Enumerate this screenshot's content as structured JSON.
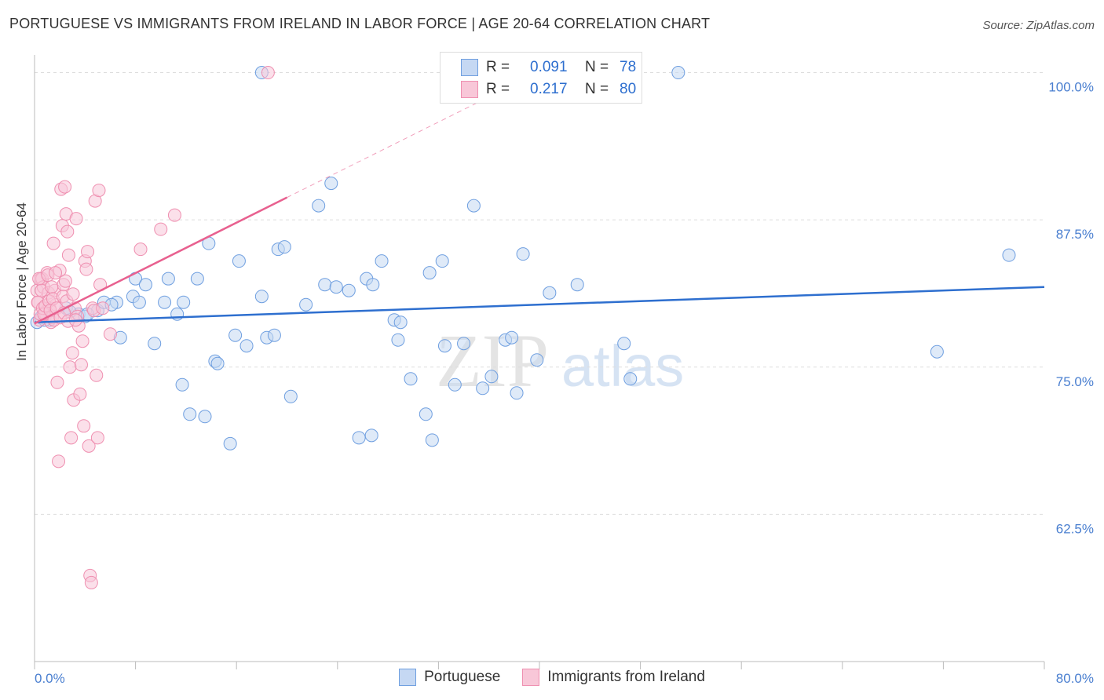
{
  "title": "PORTUGUESE VS IMMIGRANTS FROM IRELAND IN LABOR FORCE | AGE 20-64 CORRELATION CHART",
  "source": "Source: ZipAtlas.com",
  "watermark": {
    "zip": "ZIP",
    "atlas": "atlas"
  },
  "legend": {
    "r_label": "R =",
    "n_label": "N =",
    "series": [
      {
        "r": "0.091",
        "n": "78"
      },
      {
        "r": "0.217",
        "n": "80"
      }
    ]
  },
  "bottom_legend": [
    "Portuguese",
    "Immigrants from Ireland"
  ],
  "colors": {
    "blue": "#6f9fe0",
    "blue_fill": "#c5d8f3",
    "blue_line": "#2e6fcf",
    "pink": "#ef8fb0",
    "pink_fill": "#f8c7d8",
    "pink_line": "#e8608f",
    "axis_label": "#4a7fd0",
    "grid": "#dddddd"
  },
  "chart_data": {
    "type": "scatter",
    "title": "PORTUGUESE VS IMMIGRANTS FROM IRELAND IN LABOR FORCE | AGE 20-64 CORRELATION CHART",
    "xlabel": "",
    "ylabel": "In Labor Force | Age 20-64",
    "xlim": [
      0,
      80
    ],
    "ylim": [
      50,
      101.5
    ],
    "x_tick_labels": [
      "0.0%",
      "80.0%"
    ],
    "y_ticks": [
      62.5,
      75.0,
      87.5,
      100.0
    ],
    "y_tick_labels": [
      "62.5%",
      "75.0%",
      "87.5%",
      "100.0%"
    ],
    "series": [
      {
        "name": "Portuguese",
        "r": 0.091,
        "n": 78,
        "trend": {
          "x": [
            0,
            80
          ],
          "y": [
            78.8,
            81.8
          ]
        },
        "points": [
          [
            0.2,
            78.8
          ],
          [
            0.5,
            79.2
          ],
          [
            1.2,
            79.0
          ],
          [
            2.5,
            80.0
          ],
          [
            3.5,
            79.5
          ],
          [
            4.0,
            79.3
          ],
          [
            5.0,
            79.8
          ],
          [
            5.5,
            80.5
          ],
          [
            6.5,
            80.5
          ],
          [
            6.8,
            77.5
          ],
          [
            7.8,
            81.0
          ],
          [
            8.0,
            82.5
          ],
          [
            8.3,
            80.5
          ],
          [
            8.8,
            82.0
          ],
          [
            9.5,
            77.0
          ],
          [
            10.3,
            80.5
          ],
          [
            10.6,
            82.5
          ],
          [
            11.3,
            79.5
          ],
          [
            11.7,
            73.5
          ],
          [
            11.8,
            80.5
          ],
          [
            12.3,
            71.0
          ],
          [
            12.9,
            82.5
          ],
          [
            13.5,
            70.8
          ],
          [
            13.8,
            85.5
          ],
          [
            14.3,
            75.5
          ],
          [
            14.5,
            75.3
          ],
          [
            15.5,
            68.5
          ],
          [
            15.9,
            77.7
          ],
          [
            16.2,
            84.0
          ],
          [
            16.8,
            76.8
          ],
          [
            18.0,
            81.0
          ],
          [
            18.4,
            77.5
          ],
          [
            19.0,
            77.7
          ],
          [
            19.3,
            85.0
          ],
          [
            19.8,
            85.2
          ],
          [
            20.3,
            72.5
          ],
          [
            21.5,
            80.3
          ],
          [
            22.5,
            88.7
          ],
          [
            23.0,
            82.0
          ],
          [
            23.5,
            90.6
          ],
          [
            23.9,
            81.8
          ],
          [
            24.9,
            81.5
          ],
          [
            25.7,
            69.0
          ],
          [
            26.3,
            82.5
          ],
          [
            26.7,
            69.2
          ],
          [
            26.8,
            82.0
          ],
          [
            27.5,
            84.0
          ],
          [
            28.5,
            79.0
          ],
          [
            28.8,
            77.3
          ],
          [
            29.0,
            78.8
          ],
          [
            29.8,
            74.0
          ],
          [
            31.0,
            71.0
          ],
          [
            31.3,
            83.0
          ],
          [
            31.5,
            68.8
          ],
          [
            32.3,
            84.0
          ],
          [
            32.5,
            76.8
          ],
          [
            33.3,
            73.5
          ],
          [
            34.0,
            77.0
          ],
          [
            34.8,
            88.7
          ],
          [
            35.5,
            73.2
          ],
          [
            36.2,
            74.2
          ],
          [
            37.3,
            77.3
          ],
          [
            37.8,
            77.5
          ],
          [
            38.2,
            72.8
          ],
          [
            38.7,
            84.6
          ],
          [
            39.8,
            75.6
          ],
          [
            40.8,
            81.3
          ],
          [
            43.0,
            82.0
          ],
          [
            46.7,
            77.0
          ],
          [
            47.2,
            74.0
          ],
          [
            51.0,
            100.0
          ],
          [
            71.5,
            76.3
          ],
          [
            77.2,
            84.5
          ],
          [
            18.0,
            100.0
          ],
          [
            2.8,
            79.7
          ],
          [
            4.2,
            79.5
          ],
          [
            6.1,
            80.3
          ],
          [
            0.8,
            79.0
          ]
        ]
      },
      {
        "name": "Immigrants from Ireland",
        "r": 0.217,
        "n": 80,
        "trend": {
          "x": [
            0,
            20
          ],
          "y": [
            78.7,
            89.4
          ]
        },
        "trend_dashed": {
          "x": [
            20,
            35
          ],
          "y": [
            89.4,
            97.4
          ]
        },
        "points": [
          [
            0.2,
            81.5
          ],
          [
            0.3,
            80.5
          ],
          [
            0.4,
            79.0
          ],
          [
            0.5,
            82.5
          ],
          [
            0.6,
            82.5
          ],
          [
            0.7,
            81.8
          ],
          [
            0.8,
            80.0
          ],
          [
            0.9,
            79.5
          ],
          [
            1.0,
            83.0
          ],
          [
            1.1,
            81.3
          ],
          [
            1.2,
            80.0
          ],
          [
            1.3,
            78.8
          ],
          [
            1.4,
            79.2
          ],
          [
            1.5,
            85.5
          ],
          [
            1.6,
            81.5
          ],
          [
            1.7,
            80.3
          ],
          [
            1.8,
            73.7
          ],
          [
            1.9,
            67.0
          ],
          [
            2.0,
            83.2
          ],
          [
            2.1,
            90.1
          ],
          [
            2.2,
            87.0
          ],
          [
            2.3,
            82.0
          ],
          [
            2.4,
            90.3
          ],
          [
            2.5,
            88.0
          ],
          [
            2.6,
            86.5
          ],
          [
            2.7,
            84.5
          ],
          [
            2.8,
            75.0
          ],
          [
            2.9,
            69.0
          ],
          [
            3.0,
            76.2
          ],
          [
            3.1,
            72.2
          ],
          [
            3.2,
            80.0
          ],
          [
            3.3,
            87.6
          ],
          [
            3.4,
            79.3
          ],
          [
            3.5,
            78.5
          ],
          [
            3.6,
            72.7
          ],
          [
            3.7,
            75.2
          ],
          [
            3.8,
            77.2
          ],
          [
            3.9,
            70.0
          ],
          [
            4.0,
            84.0
          ],
          [
            4.1,
            83.3
          ],
          [
            4.2,
            84.8
          ],
          [
            4.3,
            68.3
          ],
          [
            4.4,
            57.3
          ],
          [
            4.5,
            56.7
          ],
          [
            4.6,
            80.0
          ],
          [
            4.7,
            79.8
          ],
          [
            4.8,
            89.1
          ],
          [
            4.9,
            74.3
          ],
          [
            5.0,
            69.0
          ],
          [
            5.1,
            90.0
          ],
          [
            5.2,
            82.0
          ],
          [
            5.4,
            80.0
          ],
          [
            6.0,
            77.8
          ],
          [
            8.4,
            85.0
          ],
          [
            10.0,
            86.7
          ],
          [
            11.1,
            87.9
          ],
          [
            18.5,
            100.0
          ],
          [
            0.25,
            80.5
          ],
          [
            0.35,
            82.5
          ],
          [
            0.45,
            79.5
          ],
          [
            0.55,
            81.5
          ],
          [
            0.65,
            80.0
          ],
          [
            0.75,
            79.5
          ],
          [
            0.85,
            80.2
          ],
          [
            1.05,
            82.8
          ],
          [
            1.15,
            80.6
          ],
          [
            1.25,
            79.8
          ],
          [
            1.35,
            81.8
          ],
          [
            1.45,
            80.8
          ],
          [
            1.55,
            79.0
          ],
          [
            1.65,
            83.0
          ],
          [
            1.75,
            80.0
          ],
          [
            2.05,
            79.2
          ],
          [
            2.25,
            81.0
          ],
          [
            2.35,
            79.6
          ],
          [
            2.45,
            82.3
          ],
          [
            2.55,
            80.6
          ],
          [
            2.65,
            78.9
          ],
          [
            3.05,
            81.2
          ],
          [
            3.25,
            79.0
          ]
        ]
      }
    ]
  }
}
